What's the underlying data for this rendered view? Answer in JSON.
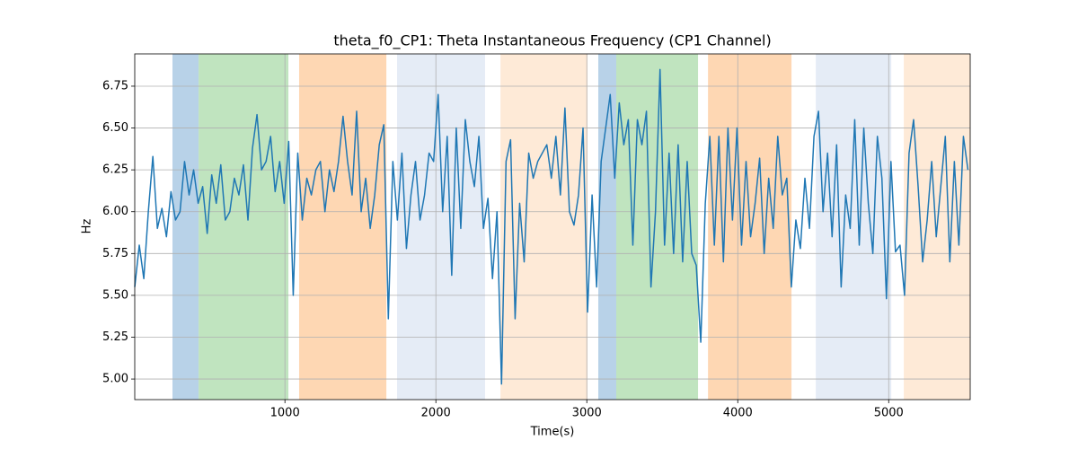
{
  "chart_data": {
    "type": "line",
    "title": "theta_f0_CP1: Theta Instantaneous Frequency (CP1 Channel)",
    "x_label": "Time(s)",
    "y_label": "Hz",
    "xlim": [
      5,
      5540
    ],
    "ylim": [
      4.877,
      6.943
    ],
    "xticks": [
      1000,
      2000,
      3000,
      4000,
      5000
    ],
    "yticks": [
      {
        "value": 5.0,
        "label": "5.00"
      },
      {
        "value": 5.25,
        "label": "5.25"
      },
      {
        "value": 5.5,
        "label": "5.50"
      },
      {
        "value": 5.75,
        "label": "5.75"
      },
      {
        "value": 6.0,
        "label": "6.00"
      },
      {
        "value": 6.25,
        "label": "6.25"
      },
      {
        "value": 6.5,
        "label": "6.50"
      },
      {
        "value": 6.75,
        "label": "6.75"
      }
    ],
    "grid": true,
    "spans": [
      {
        "x0": 255,
        "x1": 428,
        "color": "#b8d2e8"
      },
      {
        "x0": 428,
        "x1": 1023,
        "color": "#c0e4bf"
      },
      {
        "x0": 1094,
        "x1": 1672,
        "color": "#fed7b3"
      },
      {
        "x0": 1743,
        "x1": 2326,
        "color": "#e5ecf6"
      },
      {
        "x0": 2428,
        "x1": 3005,
        "color": "#feead7"
      },
      {
        "x0": 3076,
        "x1": 3195,
        "color": "#b8d2e8"
      },
      {
        "x0": 3195,
        "x1": 3737,
        "color": "#c0e4bf"
      },
      {
        "x0": 3803,
        "x1": 4356,
        "color": "#fed7b3"
      },
      {
        "x0": 4517,
        "x1": 5017,
        "color": "#e5ecf6"
      },
      {
        "x0": 5100,
        "x1": 5540,
        "color": "#feead7"
      }
    ],
    "x": [
      5,
      35,
      65,
      95,
      125,
      155,
      185,
      215,
      245,
      275,
      305,
      335,
      365,
      395,
      425,
      455,
      485,
      515,
      545,
      575,
      605,
      635,
      665,
      695,
      725,
      755,
      785,
      815,
      845,
      875,
      905,
      935,
      965,
      995,
      1025,
      1055,
      1085,
      1115,
      1145,
      1175,
      1205,
      1235,
      1265,
      1295,
      1325,
      1355,
      1385,
      1415,
      1445,
      1475,
      1505,
      1535,
      1565,
      1595,
      1625,
      1655,
      1685,
      1715,
      1745,
      1775,
      1805,
      1835,
      1865,
      1895,
      1925,
      1955,
      1985,
      2015,
      2045,
      2075,
      2105,
      2135,
      2165,
      2195,
      2225,
      2255,
      2285,
      2315,
      2345,
      2375,
      2405,
      2435,
      2465,
      2495,
      2525,
      2555,
      2585,
      2615,
      2645,
      2675,
      2705,
      2735,
      2765,
      2795,
      2825,
      2855,
      2885,
      2915,
      2945,
      2975,
      3005,
      3035,
      3065,
      3095,
      3125,
      3155,
      3185,
      3215,
      3245,
      3275,
      3305,
      3335,
      3365,
      3395,
      3425,
      3455,
      3485,
      3515,
      3545,
      3575,
      3605,
      3635,
      3665,
      3695,
      3725,
      3755,
      3785,
      3815,
      3845,
      3875,
      3905,
      3935,
      3965,
      3995,
      4025,
      4055,
      4085,
      4115,
      4145,
      4175,
      4205,
      4235,
      4265,
      4295,
      4325,
      4355,
      4385,
      4415,
      4445,
      4475,
      4505,
      4535,
      4565,
      4595,
      4625,
      4655,
      4685,
      4715,
      4745,
      4775,
      4805,
      4835,
      4865,
      4895,
      4925,
      4955,
      4985,
      5015,
      5045,
      5075,
      5105,
      5135,
      5165,
      5195,
      5225,
      5255,
      5285,
      5315,
      5345,
      5375,
      5405,
      5435,
      5465,
      5495,
      5525
    ],
    "series": [
      {
        "color": "#1f77b4",
        "values": [
          5.55,
          5.8,
          5.6,
          6.0,
          6.33,
          5.9,
          6.02,
          5.85,
          6.12,
          5.95,
          6.0,
          6.3,
          6.1,
          6.25,
          6.05,
          6.15,
          5.87,
          6.22,
          6.05,
          6.28,
          5.95,
          6.0,
          6.2,
          6.1,
          6.28,
          5.95,
          6.38,
          6.58,
          6.25,
          6.3,
          6.45,
          6.12,
          6.3,
          6.05,
          6.42,
          5.5,
          6.35,
          5.95,
          6.2,
          6.1,
          6.25,
          6.3,
          6.0,
          6.25,
          6.12,
          6.3,
          6.57,
          6.3,
          6.1,
          6.6,
          6.0,
          6.2,
          5.9,
          6.1,
          6.4,
          6.52,
          5.36,
          6.3,
          5.95,
          6.35,
          5.78,
          6.1,
          6.3,
          5.95,
          6.1,
          6.35,
          6.3,
          6.7,
          6.0,
          6.45,
          5.62,
          6.5,
          5.9,
          6.55,
          6.3,
          6.15,
          6.45,
          5.9,
          6.08,
          5.6,
          6.0,
          4.97,
          6.3,
          6.43,
          5.36,
          6.05,
          5.7,
          6.35,
          6.2,
          6.3,
          6.35,
          6.4,
          6.2,
          6.45,
          6.1,
          6.62,
          6.0,
          5.92,
          6.1,
          6.5,
          5.4,
          6.1,
          5.55,
          6.3,
          6.5,
          6.7,
          6.2,
          6.65,
          6.4,
          6.55,
          5.8,
          6.55,
          6.4,
          6.6,
          5.55,
          6.0,
          6.85,
          5.8,
          6.35,
          5.75,
          6.4,
          5.7,
          6.3,
          5.75,
          5.68,
          5.22,
          6.05,
          6.45,
          5.8,
          6.45,
          5.7,
          6.5,
          5.95,
          6.5,
          5.8,
          6.3,
          5.85,
          6.05,
          6.32,
          5.75,
          6.2,
          5.9,
          6.45,
          6.1,
          6.2,
          5.55,
          5.95,
          5.78,
          6.2,
          5.9,
          6.45,
          6.6,
          6.0,
          6.35,
          5.85,
          6.4,
          5.55,
          6.1,
          5.9,
          6.55,
          5.8,
          6.5,
          6.05,
          5.75,
          6.45,
          6.2,
          5.48,
          6.3,
          5.76,
          5.8,
          5.5,
          6.35,
          6.55,
          6.15,
          5.7,
          5.95,
          6.3,
          5.85,
          6.15,
          6.45,
          5.7,
          6.3,
          5.8,
          6.45,
          6.25
        ]
      }
    ]
  }
}
